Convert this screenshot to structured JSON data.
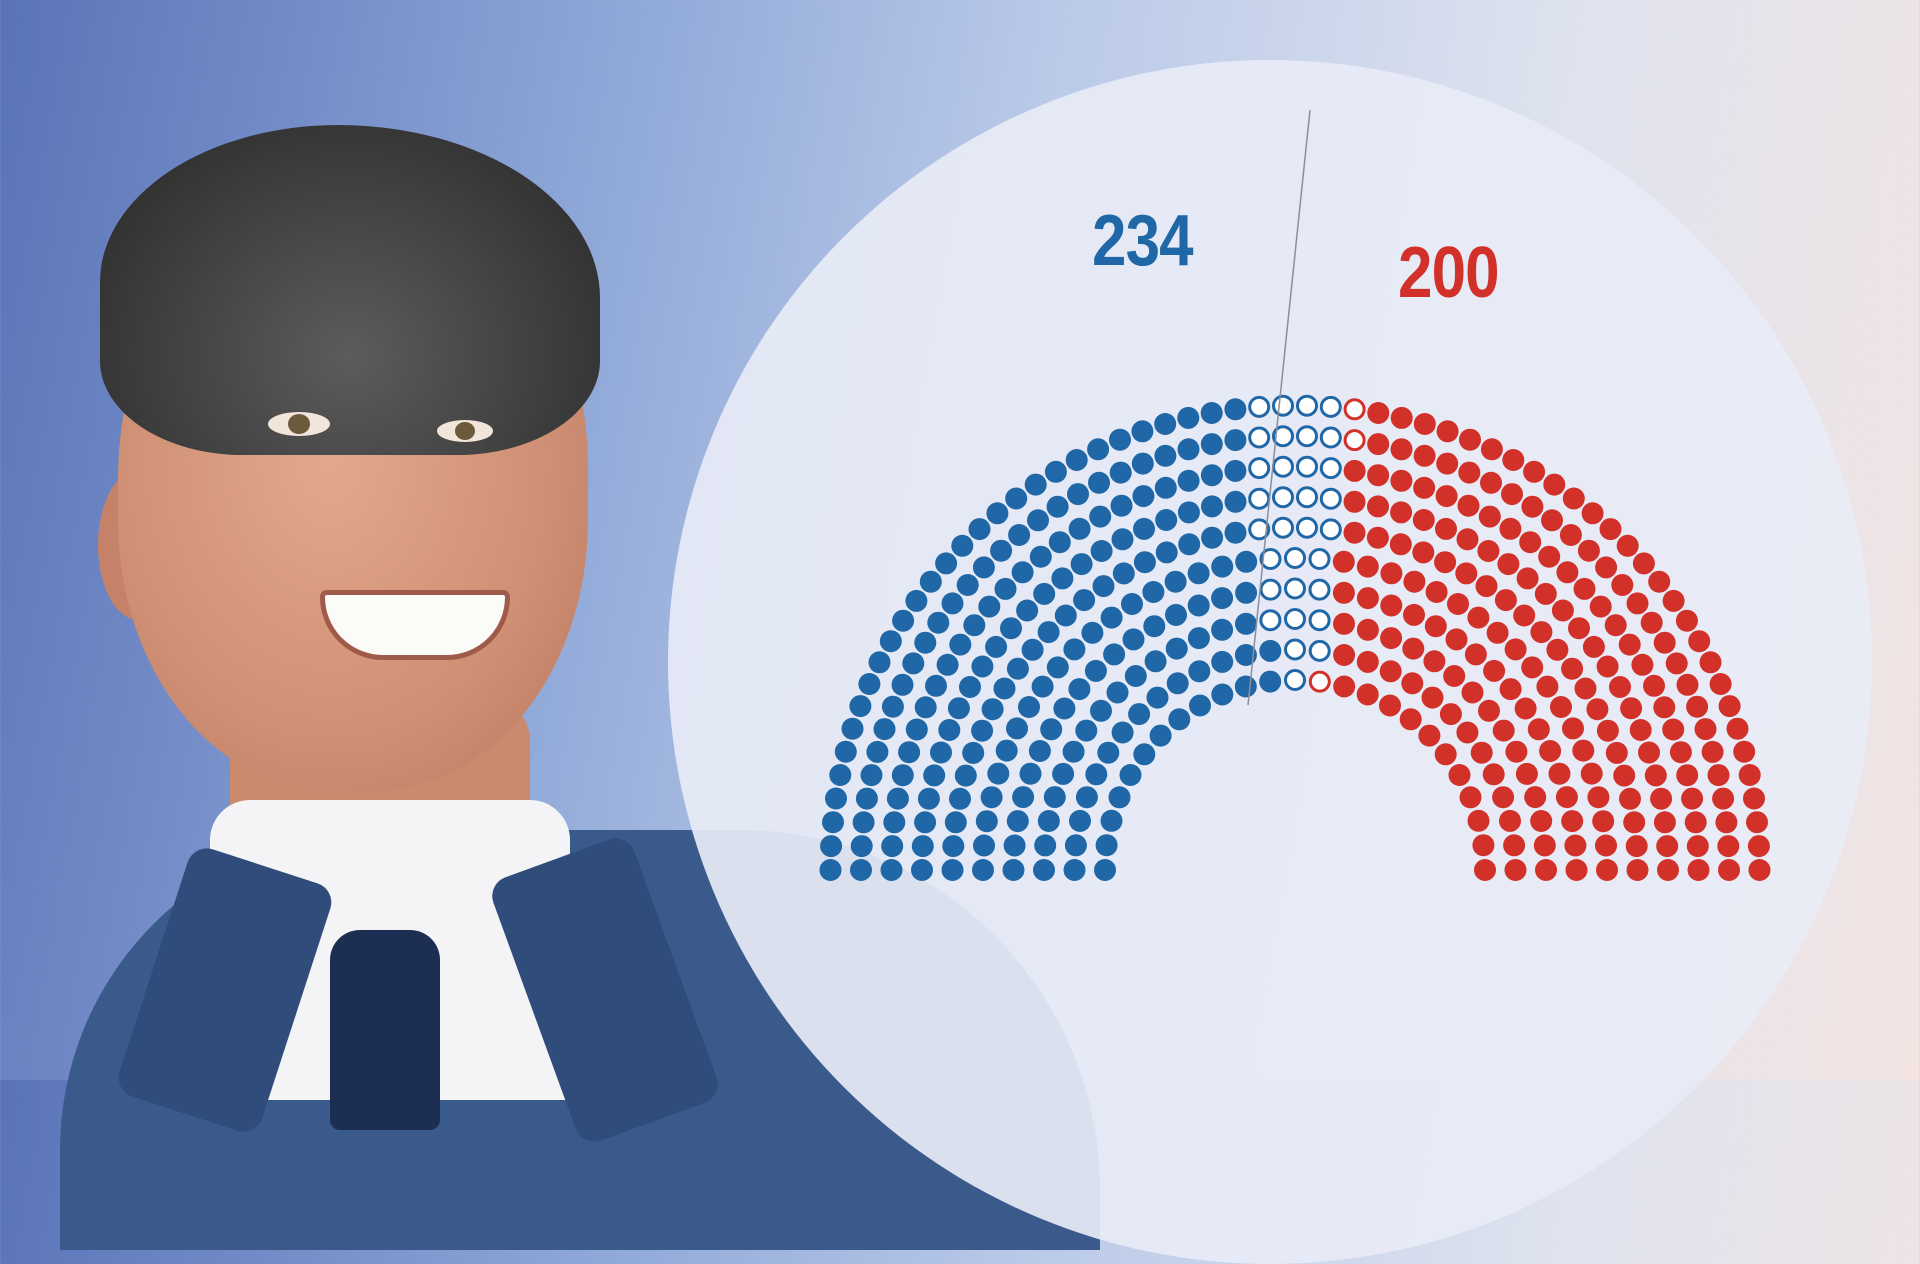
{
  "chart_data": {
    "type": "parliament",
    "title": "",
    "xlabel": "",
    "ylabel": "",
    "total_seats": 435,
    "majority_line": 218,
    "series": [
      {
        "name": "",
        "display_count": "234",
        "filled": 202,
        "open": 32,
        "color": "#1f67a6"
      },
      {
        "name": "",
        "display_count": "200",
        "filled": 197,
        "open": 3,
        "color": "#d2312a"
      }
    ]
  },
  "portrait": {
    "kind": "photo-of-smiling-man-in-suit"
  }
}
